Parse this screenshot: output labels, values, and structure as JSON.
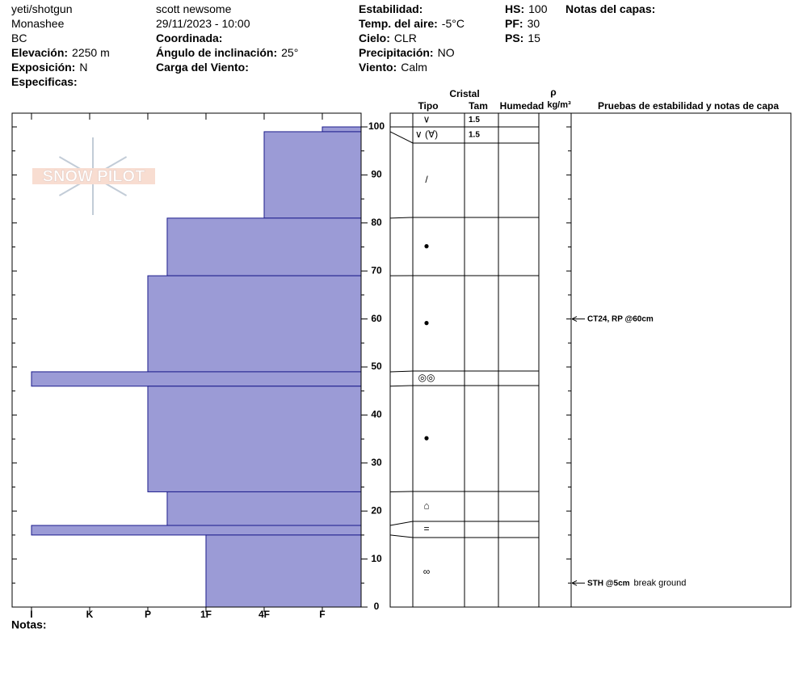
{
  "header": {
    "columns": [
      [
        {
          "text": "yeti/shotgun"
        },
        {
          "text": "Monashee"
        },
        {
          "text": "BC"
        },
        {
          "label": "Elevación:",
          "value": "2250 m"
        },
        {
          "label": "Exposición:",
          "value": "N"
        },
        {
          "label": "Especificas:"
        }
      ],
      [
        {
          "text": "scott newsome"
        },
        {
          "text": "29/11/2023 - 10:00"
        },
        {
          "label": "Coordinada:"
        },
        {
          "label": "Ángulo de inclinación:",
          "value": "25°"
        },
        {
          "label": "Carga del Viento:"
        }
      ],
      [
        {
          "label": "Estabilidad:"
        },
        {
          "label": "Temp. del aire:",
          "value": "-5°C"
        },
        {
          "label": "Cielo:",
          "value": "CLR"
        },
        {
          "label": "Precipitación:",
          "value": "NO"
        },
        {
          "label": "Viento:",
          "value": "Calm"
        }
      ],
      [
        {
          "label": "HS:",
          "value": "100"
        },
        {
          "label": "PF:",
          "value": "30"
        },
        {
          "label": "PS:",
          "value": "15"
        }
      ],
      [
        {
          "label": "Notas del capas:"
        }
      ]
    ]
  },
  "logo": "SNOW PILOT",
  "chart_data": {
    "type": "hardness-profile",
    "color": "#9b9bd6",
    "edge_color": "#1c1c8c",
    "xlim": [
      6.333,
      0.333
    ],
    "xticks": [
      {
        "value": 6,
        "label": "I"
      },
      {
        "value": 5,
        "label": "K"
      },
      {
        "value": 4,
        "label": "P"
      },
      {
        "value": 3,
        "label": "1F"
      },
      {
        "value": 2,
        "label": "4F"
      },
      {
        "value": 1,
        "label": "F"
      }
    ],
    "ylim": [
      0,
      100
    ],
    "yticks": [
      0,
      10,
      20,
      30,
      40,
      50,
      60,
      70,
      80,
      90,
      100
    ],
    "yminor": [
      5,
      15,
      25,
      35,
      45,
      55,
      65,
      75,
      85,
      95
    ],
    "layers": [
      {
        "top": 100,
        "bottom": 100,
        "hardness": null,
        "grain": "∨",
        "size": "1.5"
      },
      {
        "top": 100,
        "bottom": 99,
        "hardness": 1,
        "grain": "∨ (∀)",
        "size": "1.5"
      },
      {
        "top": 99,
        "bottom": 81,
        "hardness": 2,
        "grain": "/",
        "size": null
      },
      {
        "top": 81,
        "bottom": 69,
        "hardness": 3.667,
        "grain": "●",
        "size": null
      },
      {
        "top": 69,
        "bottom": 49,
        "hardness": 4,
        "grain": "●",
        "size": null
      },
      {
        "top": 49,
        "bottom": 46,
        "hardness": 6,
        "grain": "◎◎",
        "size": null
      },
      {
        "top": 46,
        "bottom": 24,
        "hardness": 4,
        "grain": "●",
        "size": null
      },
      {
        "top": 24,
        "bottom": 17,
        "hardness": 3.667,
        "grain": "⌂",
        "size": null
      },
      {
        "top": 17,
        "bottom": 15,
        "hardness": 6,
        "grain": "=",
        "size": null
      },
      {
        "top": 15,
        "bottom": 0,
        "hardness": 3,
        "grain": "∞",
        "size": null
      }
    ],
    "table_headers": {
      "crystal": "Cristal",
      "type": "Tipo",
      "size": "Tam",
      "moisture": "Humedad",
      "rho": "ρ",
      "density": "kg/m³",
      "tests": "Pruebas de estabilidad y notas de capa"
    },
    "tests": [
      {
        "depth": 60,
        "label": "CT24, RP @60cm"
      },
      {
        "depth": 5,
        "label": "STH @5cm",
        "note": "break ground"
      }
    ]
  },
  "notes_label": "Notas:"
}
